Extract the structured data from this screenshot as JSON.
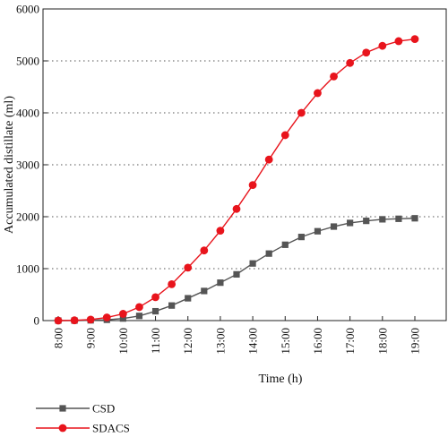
{
  "chart_data": {
    "type": "line",
    "xlabel": "Time (h)",
    "ylabel": "Accumulated distillate (ml)",
    "ylim": [
      0,
      6000
    ],
    "xlim": [
      "8:00",
      "19:00"
    ],
    "grid": "horizontal dotted",
    "legend_position": "bottom-left",
    "x_tick_labels": [
      "8:00",
      "9:00",
      "10:00",
      "11:00",
      "12:00",
      "13:00",
      "14:00",
      "15:00",
      "16:00",
      "17:00",
      "18:00",
      "19:00"
    ],
    "y_tick_labels": [
      "0",
      "1000",
      "2000",
      "3000",
      "4000",
      "5000",
      "6000"
    ],
    "x": [
      "8:00",
      "8:30",
      "9:00",
      "9:30",
      "10:00",
      "10:30",
      "11:00",
      "11:30",
      "12:00",
      "12:30",
      "13:00",
      "13:30",
      "14:00",
      "14:30",
      "15:00",
      "15:30",
      "16:00",
      "16:30",
      "17:00",
      "17:30",
      "18:00",
      "18:30",
      "19:00"
    ],
    "series": [
      {
        "name": "CSD",
        "color": "#555555",
        "marker": "square",
        "values": [
          0,
          0,
          5,
          15,
          40,
          90,
          180,
          290,
          430,
          570,
          730,
          890,
          1100,
          1290,
          1460,
          1610,
          1720,
          1810,
          1880,
          1920,
          1950,
          1960,
          1970
        ]
      },
      {
        "name": "SDACS",
        "color": "#e8141c",
        "marker": "circle",
        "values": [
          0,
          5,
          20,
          60,
          130,
          260,
          450,
          700,
          1020,
          1350,
          1730,
          2150,
          2610,
          3100,
          3570,
          4000,
          4380,
          4700,
          4960,
          5160,
          5290,
          5380,
          5420
        ]
      }
    ]
  }
}
